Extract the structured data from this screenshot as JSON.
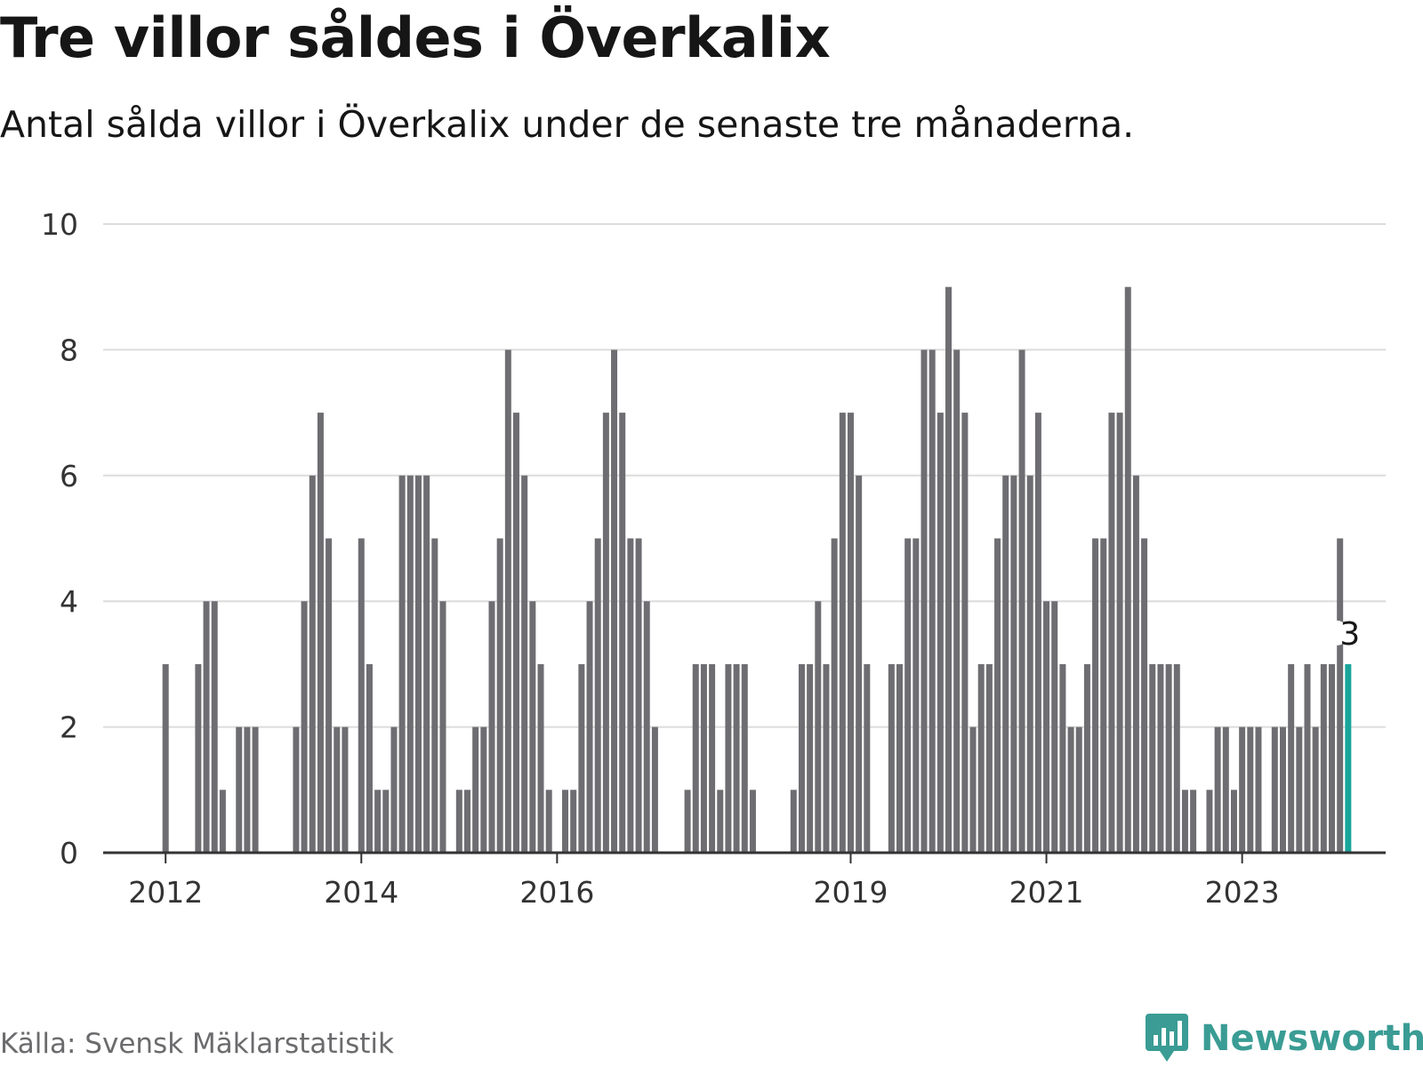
{
  "header": {
    "title": "Tre villor såldes i Överkalix",
    "subtitle": "Antal sålda villor i Överkalix under de senaste tre månaderna."
  },
  "footer": {
    "source": "Källa: Svensk Mäklarstatistik",
    "brand": "Newsworthy",
    "brand_icon": "chart-bubble-icon"
  },
  "colors": {
    "bar": "#6e6d72",
    "highlight": "#1aa59b",
    "grid": "#dcdcdc",
    "axis": "#333333",
    "text": "#333333",
    "brand": "#3a9c94"
  },
  "chart_data": {
    "type": "bar",
    "title": "Tre villor såldes i Överkalix",
    "subtitle": "Antal sålda villor i Överkalix under de senaste tre månaderna.",
    "xlabel": "",
    "ylabel": "",
    "ylim": [
      0,
      10
    ],
    "yticks": [
      0,
      2,
      4,
      6,
      8,
      10
    ],
    "xticks": [
      {
        "label": "2012",
        "index": 0
      },
      {
        "label": "2014",
        "index": 24
      },
      {
        "label": "2016",
        "index": 48
      },
      {
        "label": "2019",
        "index": 84
      },
      {
        "label": "2021",
        "index": 108
      },
      {
        "label": "2023",
        "index": 132
      }
    ],
    "grid": true,
    "start": "2012-01",
    "values": [
      3,
      0,
      0,
      0,
      3,
      4,
      4,
      1,
      0,
      2,
      2,
      2,
      0,
      0,
      0,
      0,
      2,
      4,
      6,
      7,
      5,
      2,
      2,
      0,
      5,
      3,
      1,
      1,
      2,
      6,
      6,
      6,
      6,
      5,
      4,
      0,
      1,
      1,
      2,
      2,
      4,
      5,
      8,
      7,
      6,
      4,
      3,
      1,
      0,
      1,
      1,
      3,
      4,
      5,
      7,
      8,
      7,
      5,
      5,
      4,
      2,
      0,
      0,
      0,
      1,
      3,
      3,
      3,
      1,
      3,
      3,
      3,
      1,
      0,
      0,
      0,
      0,
      1,
      3,
      3,
      4,
      3,
      5,
      7,
      7,
      6,
      3,
      0,
      0,
      3,
      3,
      5,
      5,
      8,
      8,
      7,
      9,
      8,
      7,
      2,
      3,
      3,
      5,
      6,
      6,
      8,
      6,
      7,
      4,
      4,
      3,
      2,
      2,
      3,
      5,
      5,
      7,
      7,
      9,
      6,
      5,
      3,
      3,
      3,
      3,
      1,
      1,
      0,
      1,
      2,
      2,
      1,
      2,
      2,
      2,
      0,
      2,
      2,
      3,
      2,
      3,
      2,
      3,
      3,
      5,
      3
    ],
    "highlight_last": true,
    "annotation": {
      "label": "3"
    }
  }
}
